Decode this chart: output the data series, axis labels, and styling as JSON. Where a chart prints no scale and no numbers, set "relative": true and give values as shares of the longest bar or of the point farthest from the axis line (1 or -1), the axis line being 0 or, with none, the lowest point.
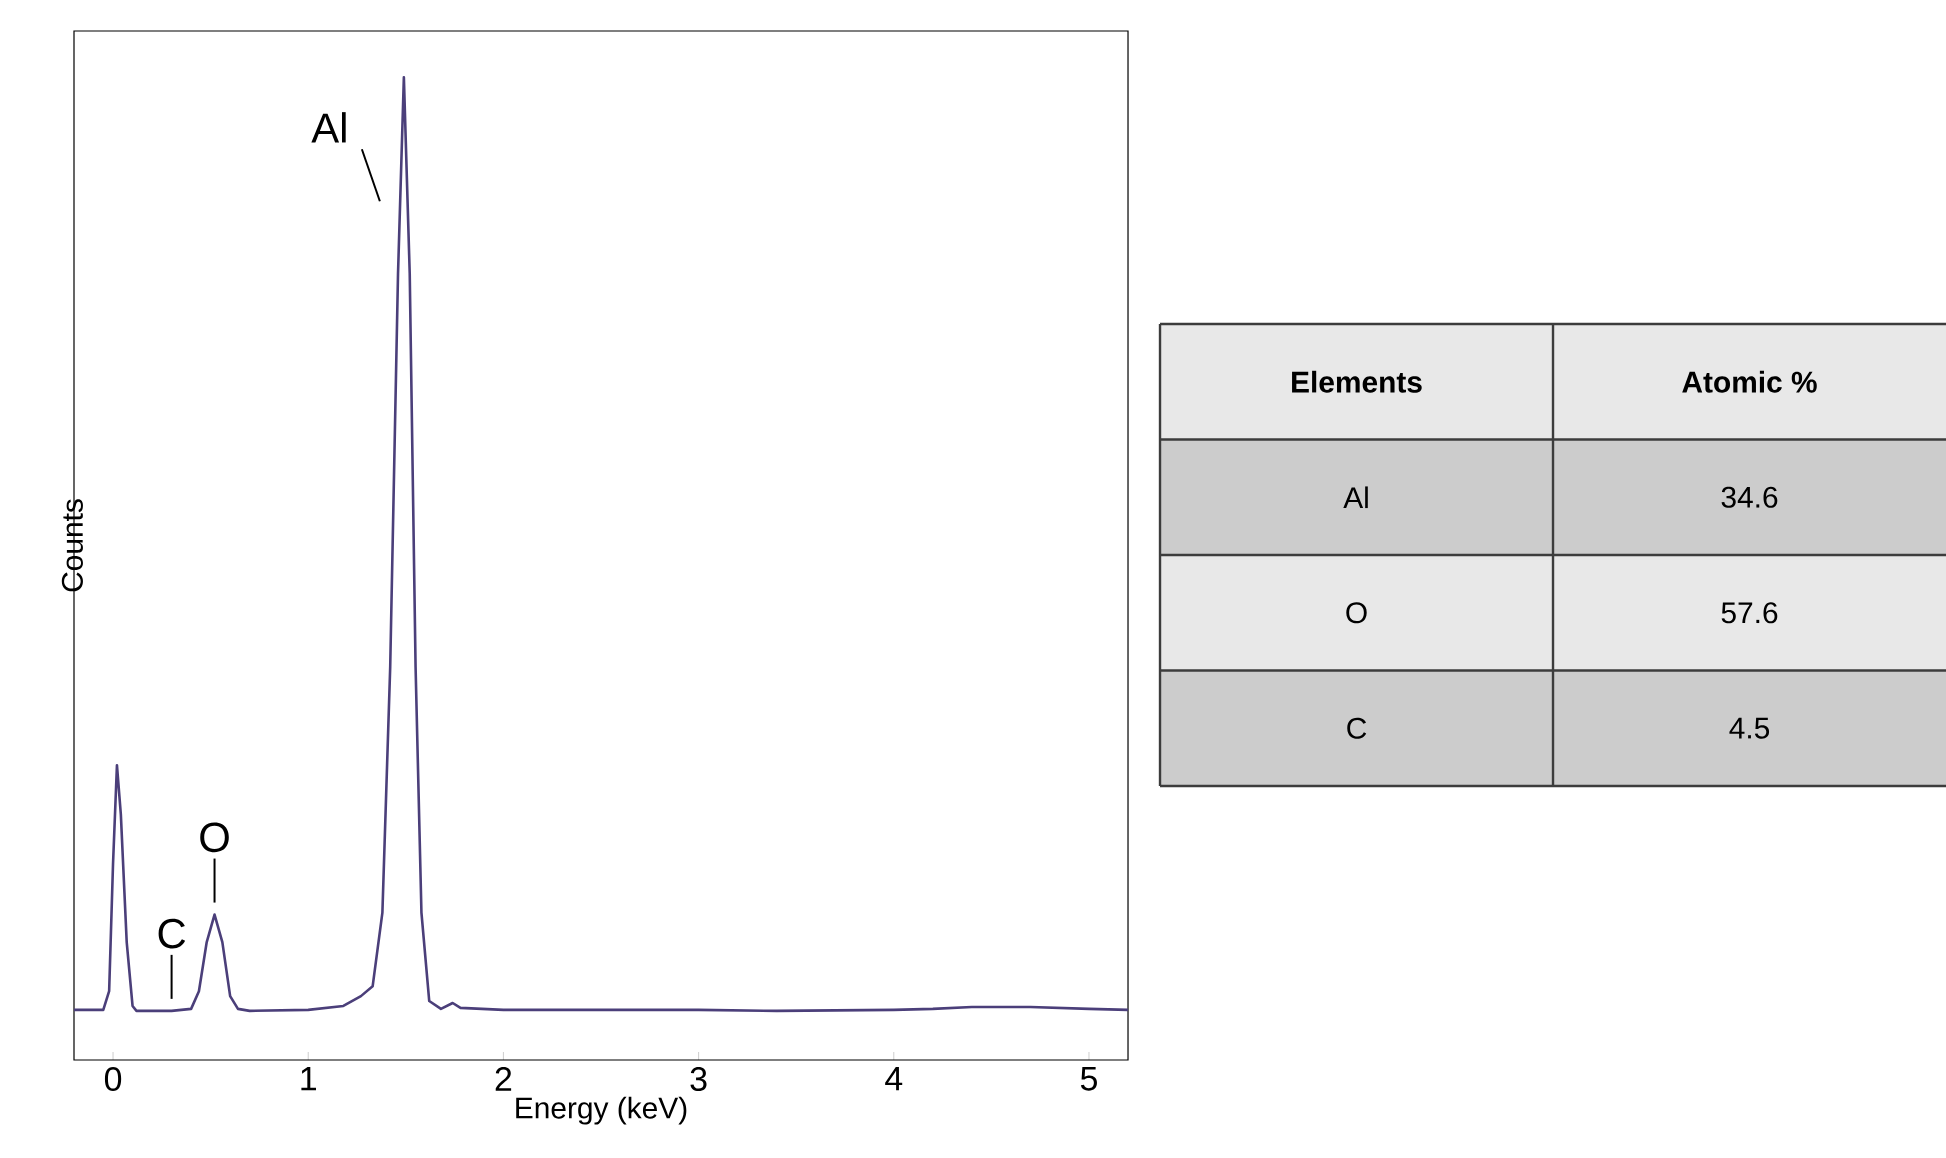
{
  "chart_data": [
    {
      "type": "line",
      "xlabel": "Energy (keV)",
      "ylabel": "Counts",
      "relative": true,
      "xlim": [
        -0.2,
        5.2
      ],
      "xticks": [
        0,
        1,
        2,
        3,
        4,
        5
      ],
      "grid": false,
      "marker": "none",
      "line_style": "solid",
      "annotations": [
        {
          "text": "Al",
          "x": 1.49,
          "y": 1.0
        },
        {
          "text": "O",
          "x": 0.52,
          "y": 0.148
        },
        {
          "text": "C",
          "x": 0.3,
          "y": 0.05
        }
      ],
      "x": [
        -0.2,
        -0.05,
        -0.02,
        0.0,
        0.02,
        0.04,
        0.07,
        0.1,
        0.12,
        0.3,
        0.4,
        0.44,
        0.48,
        0.52,
        0.56,
        0.6,
        0.64,
        0.7,
        1.0,
        1.18,
        1.27,
        1.33,
        1.38,
        1.42,
        1.46,
        1.49,
        1.52,
        1.55,
        1.58,
        1.62,
        1.68,
        1.74,
        1.78,
        2.0,
        3.0,
        3.4,
        4.0,
        4.2,
        4.4,
        4.7,
        5.0,
        5.2
      ],
      "series": [
        {
          "color": "#4b3f7a",
          "values": [
            0.051,
            0.051,
            0.07,
            0.2,
            0.3,
            0.25,
            0.12,
            0.055,
            0.05,
            0.05,
            0.052,
            0.07,
            0.12,
            0.148,
            0.12,
            0.065,
            0.052,
            0.05,
            0.051,
            0.055,
            0.065,
            0.075,
            0.15,
            0.4,
            0.8,
            1.0,
            0.8,
            0.4,
            0.15,
            0.06,
            0.052,
            0.058,
            0.053,
            0.051,
            0.051,
            0.05,
            0.051,
            0.052,
            0.054,
            0.054,
            0.052,
            0.051
          ]
        }
      ]
    },
    {
      "type": "other",
      "xlabel": "Elements",
      "ylabel": "Atomic %",
      "categories": [
        "Al",
        "O",
        "C"
      ],
      "values": [
        34.6,
        57.6,
        4.5
      ],
      "data_labels": true,
      "colors": [
        "#cccccc",
        "#e8e8e8",
        "#cccccc"
      ]
    }
  ]
}
